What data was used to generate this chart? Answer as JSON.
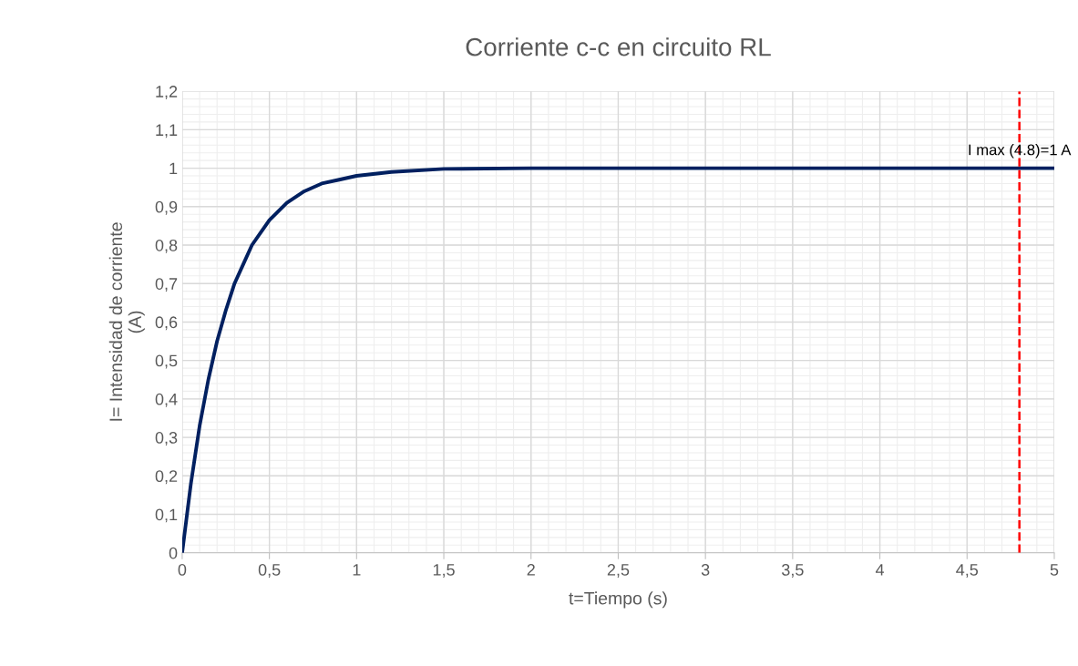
{
  "chart_data": {
    "type": "line",
    "title": "Corriente c-c en circuito RL",
    "xlabel": "t=Tiempo (s)",
    "ylabel": "I= Intensidad de corriente\n(A)",
    "x": [
      0,
      0.05,
      0.1,
      0.15,
      0.2,
      0.25,
      0.3,
      0.35,
      0.4,
      0.5,
      0.6,
      0.7,
      0.8,
      0.9,
      1,
      1.2,
      1.5,
      2,
      3,
      4,
      5
    ],
    "series": [
      {
        "color": "#002060",
        "values": [
          0,
          0.18,
          0.33,
          0.45,
          0.55,
          0.63,
          0.7,
          0.75,
          0.8,
          0.865,
          0.91,
          0.94,
          0.96,
          0.97,
          0.98,
          0.99,
          0.998,
          1,
          1,
          1,
          1
        ]
      }
    ],
    "xlim": [
      0,
      5
    ],
    "ylim": [
      0,
      1.2
    ],
    "xticks": [
      0,
      {
        "value": 0.5,
        "label": "0,5"
      },
      1,
      {
        "value": 1.5,
        "label": "1,5"
      },
      2,
      {
        "value": 2.5,
        "label": "2,5"
      },
      3,
      {
        "value": 3.5,
        "label": "3,5"
      },
      4,
      {
        "value": 4.5,
        "label": "4,5"
      },
      5
    ],
    "yticks": [
      0,
      {
        "value": 0.1,
        "label": "0,1"
      },
      {
        "value": 0.2,
        "label": "0,2"
      },
      {
        "value": 0.3,
        "label": "0,3"
      },
      {
        "value": 0.4,
        "label": "0,4"
      },
      {
        "value": 0.5,
        "label": "0,5"
      },
      {
        "value": 0.6,
        "label": "0,6"
      },
      {
        "value": 0.7,
        "label": "0,7"
      },
      {
        "value": 0.8,
        "label": "0,8"
      },
      {
        "value": 0.9,
        "label": "0,9"
      },
      1,
      {
        "value": 1.1,
        "label": "1,1"
      },
      {
        "value": 1.2,
        "label": "1,2"
      }
    ],
    "ref_lines": [
      {
        "axis": "x",
        "value": 4.8,
        "label": "I max (4.8)=1 A",
        "color": "#ff0000",
        "line_style": "dashed"
      }
    ],
    "grid": true,
    "marker": "none",
    "line_style": "solid"
  }
}
